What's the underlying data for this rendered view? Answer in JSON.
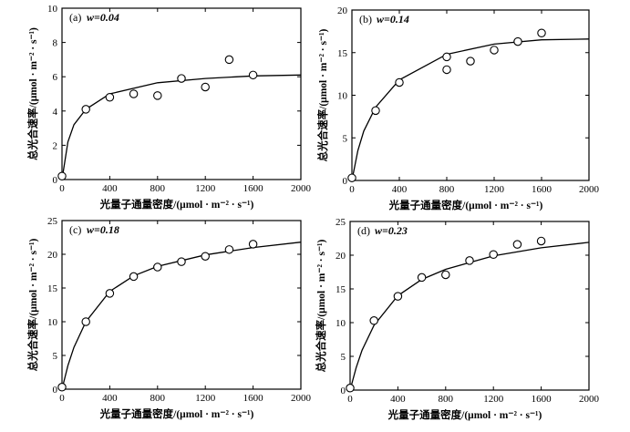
{
  "chart_data": [
    {
      "type": "scatter",
      "panel_label": "(a)",
      "annotation": "w=0.04",
      "x": [
        0,
        200,
        400,
        600,
        800,
        1000,
        1200,
        1400,
        1600
      ],
      "y": [
        0.2,
        4.1,
        4.8,
        5.0,
        4.9,
        5.9,
        5.4,
        7.0,
        6.1
      ],
      "fitted_curve": {
        "x": [
          0,
          50,
          100,
          200,
          400,
          800,
          1200,
          1600,
          2000
        ],
        "y": [
          0,
          2.2,
          3.2,
          4.1,
          5.0,
          5.65,
          5.9,
          6.05,
          6.1
        ]
      },
      "xlabel": "光量子通量密度/(μmol · m⁻² · s⁻¹)",
      "ylabel": "总光合速率/(μmol · m⁻² · s⁻¹)",
      "xlim": [
        0,
        2000
      ],
      "ylim": [
        0,
        10
      ],
      "xticks": [
        0,
        400,
        800,
        1200,
        1600,
        2000
      ],
      "yticks": [
        0,
        2,
        4,
        6,
        8,
        10
      ]
    },
    {
      "type": "scatter",
      "panel_label": "(b)",
      "annotation": "w=0.14",
      "x": [
        0,
        200,
        400,
        800,
        800,
        1000,
        1200,
        1400,
        1600
      ],
      "y": [
        0.3,
        8.2,
        11.5,
        13.0,
        14.5,
        14.0,
        15.3,
        16.3,
        17.3
      ],
      "fitted_curve": {
        "x": [
          0,
          50,
          100,
          200,
          400,
          800,
          1200,
          1600,
          2000
        ],
        "y": [
          0,
          3.5,
          5.8,
          8.6,
          11.8,
          14.8,
          16.0,
          16.5,
          16.6
        ]
      },
      "xlabel": "光量子通量密度/(μmol · m⁻² · s⁻¹)",
      "ylabel": "总光合速率/(μmol · m⁻² · s⁻¹)",
      "xlim": [
        0,
        2000
      ],
      "ylim": [
        0,
        20
      ],
      "xticks": [
        0,
        400,
        800,
        1200,
        1600,
        2000
      ],
      "yticks": [
        0,
        5,
        10,
        15,
        20
      ]
    },
    {
      "type": "scatter",
      "panel_label": "(c)",
      "annotation": "w=0.18",
      "x": [
        0,
        200,
        400,
        600,
        800,
        1000,
        1200,
        1400,
        1600
      ],
      "y": [
        0.3,
        10.0,
        14.2,
        16.7,
        18.1,
        18.9,
        19.7,
        20.7,
        21.5
      ],
      "fitted_curve": {
        "x": [
          0,
          50,
          100,
          200,
          400,
          600,
          800,
          1200,
          1600,
          2000
        ],
        "y": [
          0,
          3.5,
          6.2,
          10.0,
          14.5,
          16.8,
          18.2,
          19.9,
          21.0,
          21.8
        ]
      },
      "xlabel": "光量子通量密度/(μmol · m⁻² · s⁻¹)",
      "ylabel": "总光合速率/(μmol · m⁻² · s⁻¹)",
      "xlim": [
        0,
        2000
      ],
      "ylim": [
        0,
        25
      ],
      "xticks": [
        0,
        400,
        800,
        1200,
        1600,
        2000
      ],
      "yticks": [
        0,
        5,
        10,
        15,
        20,
        25
      ]
    },
    {
      "type": "scatter",
      "panel_label": "(d)",
      "annotation": "w=0.23",
      "x": [
        0,
        200,
        400,
        600,
        800,
        1000,
        1200,
        1400,
        1600
      ],
      "y": [
        0.3,
        10.3,
        13.9,
        16.7,
        17.1,
        19.2,
        20.1,
        21.6,
        22.1
      ],
      "fitted_curve": {
        "x": [
          0,
          50,
          100,
          200,
          400,
          600,
          800,
          1200,
          1600,
          2000
        ],
        "y": [
          0,
          3.3,
          5.9,
          9.6,
          14.0,
          16.4,
          17.9,
          19.9,
          21.1,
          21.9
        ]
      },
      "xlabel": "光量子通量密度/(μmol · m⁻² · s⁻¹)",
      "ylabel": "总光合速率/(μmol · m⁻² · s⁻¹)",
      "xlim": [
        0,
        2000
      ],
      "ylim": [
        0,
        25
      ],
      "xticks": [
        0,
        400,
        800,
        1200,
        1600,
        2000
      ],
      "yticks": [
        0,
        5,
        10,
        15,
        20,
        25
      ]
    }
  ]
}
